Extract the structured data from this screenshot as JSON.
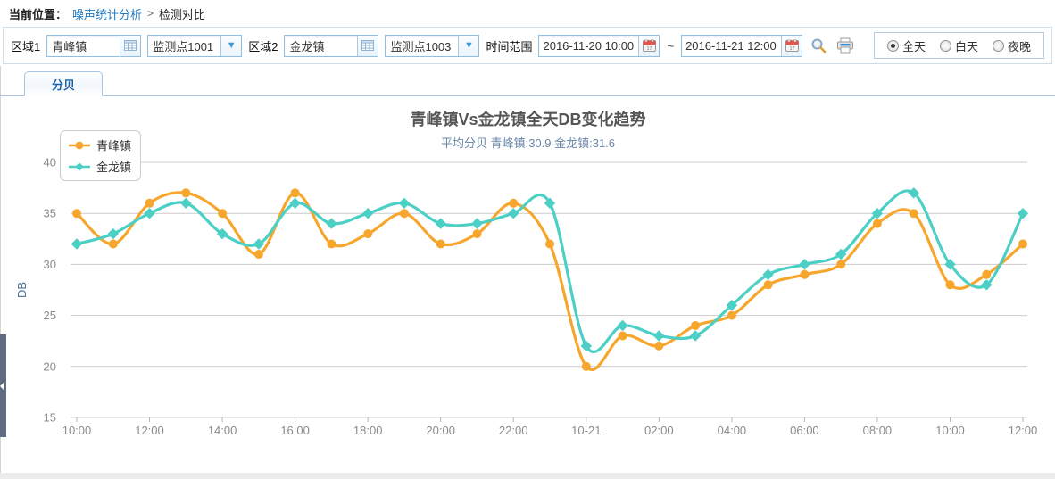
{
  "breadcrumb": {
    "label": "当前位置：",
    "link": "噪声统计分析",
    "separator": ">",
    "current": "检测对比"
  },
  "toolbar": {
    "region1_label": "区域1",
    "region1_value": "青峰镇",
    "station1_value": "监测点1001",
    "region2_label": "区域2",
    "region2_value": "金龙镇",
    "station2_value": "监测点1003",
    "time_range_label": "时间范围",
    "time_from": "2016-11-20 10:00",
    "time_separator": "~",
    "time_to": "2016-11-21 12:00",
    "icons": [
      "grid-icon",
      "chevron-down-icon",
      "calendar-icon",
      "search-icon",
      "print-icon"
    ],
    "radios": [
      {
        "label": "全天",
        "selected": true
      },
      {
        "label": "白天",
        "selected": false
      },
      {
        "label": "夜晚",
        "selected": false
      }
    ]
  },
  "tabs": [
    {
      "label": "分贝",
      "active": true
    }
  ],
  "chart_data": {
    "type": "line",
    "title": "青峰镇Vs金龙镇全天DB变化趋势",
    "subtitle": "平均分贝 青峰镇:30.9 金龙镇:31.6",
    "ylabel": "DB",
    "ylim": [
      15,
      40
    ],
    "y_ticks": [
      40,
      35,
      30,
      25,
      20,
      15
    ],
    "x_tick_labels": [
      "10:00",
      "12:00",
      "14:00",
      "16:00",
      "18:00",
      "20:00",
      "22:00",
      "10-21",
      "02:00",
      "04:00",
      "06:00",
      "08:00",
      "10:00",
      "12:00"
    ],
    "x_points_per_tick": 2,
    "grid": true,
    "smooth": true,
    "legend_position": "top-left",
    "series": [
      {
        "name": "青峰镇",
        "color": "#F7A62D",
        "marker": "circle",
        "values": [
          35,
          32,
          36,
          37,
          35,
          31,
          37,
          32,
          33,
          35,
          32,
          33,
          36,
          32,
          20,
          23,
          22,
          24,
          25,
          28,
          29,
          30,
          34,
          35,
          28,
          29,
          32
        ]
      },
      {
        "name": "金龙镇",
        "color": "#4CCFC5",
        "marker": "diamond",
        "values": [
          32,
          33,
          35,
          36,
          33,
          32,
          36,
          34,
          35,
          36,
          34,
          34,
          35,
          36,
          22,
          24,
          23,
          23,
          26,
          29,
          30,
          31,
          35,
          37,
          30,
          28,
          35
        ]
      }
    ],
    "averages": {
      "青峰镇": 30.9,
      "金龙镇": 31.6
    }
  }
}
